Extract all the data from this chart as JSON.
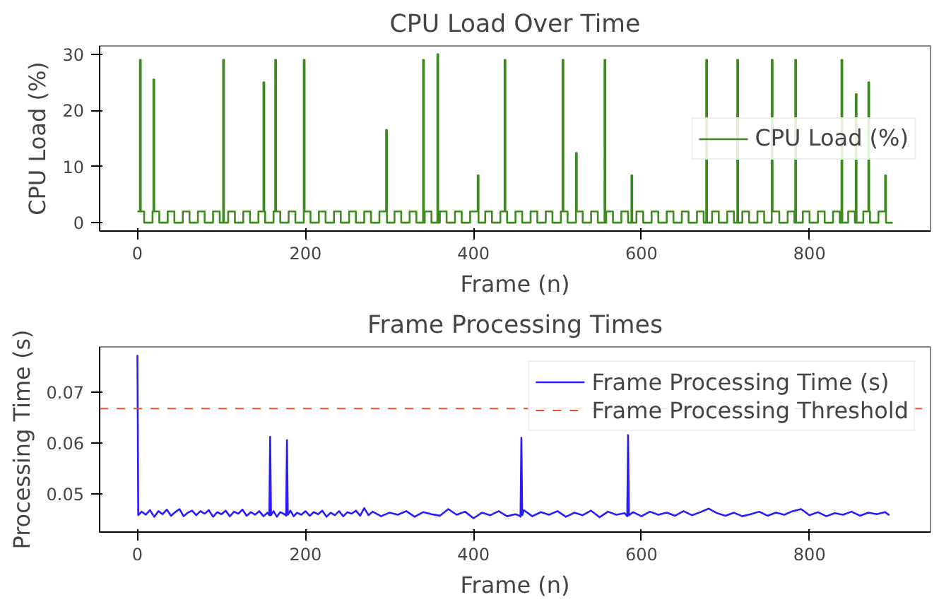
{
  "chart_data": [
    {
      "type": "step",
      "title": "CPU Load Over Time",
      "xlabel": "Frame (n)",
      "ylabel": "CPU Load (%)",
      "xlim": [
        -45,
        944
      ],
      "ylim": [
        -1.5,
        31.5
      ],
      "xticks": [
        0,
        200,
        400,
        600,
        800
      ],
      "yticks": [
        0,
        10,
        20,
        30
      ],
      "grid": false,
      "legend": "right",
      "line_style": "solid",
      "series": [
        {
          "name": "CPU Load (%)",
          "color": "#3d8b1f",
          "x": [
            0,
            3,
            4,
            8,
            18,
            19,
            20,
            26,
            36,
            44,
            54,
            62,
            72,
            80,
            90,
            98,
            102,
            103,
            108,
            116,
            126,
            134,
            144,
            150,
            151,
            152,
            162,
            164,
            165,
            170,
            180,
            188,
            198,
            199,
            206,
            216,
            224,
            234,
            242,
            252,
            260,
            270,
            278,
            288,
            296,
            297,
            306,
            314,
            324,
            332,
            340,
            341,
            342,
            350,
            357,
            358,
            360,
            368,
            378,
            386,
            396,
            405,
            406,
            414,
            422,
            432,
            437,
            438,
            440,
            450,
            458,
            468,
            476,
            486,
            494,
            504,
            506,
            507,
            512,
            522,
            523,
            530,
            540,
            548,
            556,
            557,
            558,
            566,
            576,
            584,
            588,
            589,
            594,
            602,
            612,
            620,
            630,
            638,
            648,
            656,
            666,
            674,
            677,
            678,
            684,
            692,
            702,
            710,
            714,
            715,
            720,
            728,
            738,
            746,
            755,
            756,
            764,
            774,
            782,
            783,
            784,
            792,
            800,
            810,
            818,
            828,
            836,
            838,
            839,
            846,
            854,
            855,
            856,
            864,
            870,
            871,
            872,
            882,
            890,
            891,
            899
          ],
          "values": [
            2,
            29,
            2,
            0,
            2,
            25.5,
            2,
            0,
            2,
            0,
            2,
            0,
            2,
            0,
            2,
            0,
            29,
            0,
            2,
            0,
            2,
            0,
            2,
            25,
            2,
            0,
            2,
            29,
            2,
            0,
            2,
            0,
            29,
            2,
            0,
            2,
            0,
            2,
            0,
            2,
            0,
            2,
            0,
            2,
            16.5,
            0,
            2,
            0,
            2,
            0,
            29,
            0,
            2,
            0,
            30,
            0,
            2,
            0,
            2,
            0,
            2,
            8.4,
            0,
            2,
            0,
            2,
            29,
            2,
            0,
            2,
            0,
            2,
            0,
            2,
            0,
            2,
            29,
            2,
            0,
            12.4,
            2,
            0,
            2,
            0,
            29,
            0,
            2,
            0,
            2,
            0,
            8.4,
            0,
            2,
            0,
            2,
            0,
            2,
            0,
            2,
            0,
            2,
            0,
            29,
            0,
            2,
            0,
            2,
            0,
            29,
            0,
            2,
            0,
            2,
            0,
            29,
            2,
            0,
            2,
            0,
            29,
            0,
            2,
            0,
            2,
            0,
            2,
            0,
            29,
            0,
            2,
            0,
            22.9,
            0,
            2,
            25,
            2,
            0,
            2,
            8.4,
            0,
            0
          ]
        }
      ]
    },
    {
      "type": "line",
      "title": "Frame Processing Times",
      "xlabel": "Frame (n)",
      "ylabel": "Processing Time (s)",
      "xlim": [
        -45,
        944
      ],
      "ylim": [
        0.0425,
        0.0788
      ],
      "xticks": [
        0,
        200,
        400,
        600,
        800
      ],
      "yticks": [
        0.05,
        0.06,
        0.07
      ],
      "grid": false,
      "legend": "top right",
      "line_style": "solid",
      "ref_lines": [
        {
          "axis": "y",
          "value": 0.0667,
          "label": "Frame Processing Threshold",
          "color": "#e8502a",
          "line_style": "dashed"
        }
      ],
      "series": [
        {
          "name": "Frame Processing Time (s)",
          "color": "#2a1aff",
          "x": [
            0,
            1,
            5,
            10,
            15,
            20,
            25,
            30,
            35,
            40,
            45,
            50,
            55,
            60,
            65,
            70,
            75,
            80,
            85,
            90,
            95,
            100,
            105,
            110,
            115,
            120,
            125,
            130,
            135,
            140,
            145,
            150,
            155,
            157,
            158,
            159,
            162,
            166,
            170,
            175,
            177,
            178,
            179,
            182,
            186,
            190,
            195,
            200,
            205,
            210,
            215,
            220,
            225,
            230,
            235,
            240,
            245,
            250,
            255,
            260,
            265,
            270,
            275,
            280,
            290,
            300,
            310,
            320,
            330,
            340,
            350,
            360,
            370,
            380,
            390,
            400,
            410,
            420,
            430,
            440,
            450,
            455,
            456,
            457,
            458,
            460,
            470,
            480,
            490,
            500,
            510,
            520,
            530,
            540,
            550,
            560,
            570,
            580,
            583,
            584,
            585,
            590,
            600,
            610,
            620,
            630,
            640,
            650,
            660,
            670,
            680,
            690,
            700,
            710,
            720,
            730,
            740,
            750,
            760,
            770,
            780,
            790,
            800,
            810,
            820,
            830,
            840,
            850,
            860,
            870,
            880,
            890,
            895
          ],
          "values": [
            0.0772,
            0.0458,
            0.0465,
            0.0459,
            0.0468,
            0.0455,
            0.0466,
            0.046,
            0.0469,
            0.0457,
            0.0464,
            0.047,
            0.0456,
            0.0463,
            0.0467,
            0.0458,
            0.0466,
            0.0461,
            0.0468,
            0.0455,
            0.0464,
            0.046,
            0.0467,
            0.0456,
            0.0465,
            0.0461,
            0.0469,
            0.0457,
            0.0464,
            0.0459,
            0.0466,
            0.0456,
            0.0463,
            0.0458,
            0.0612,
            0.0458,
            0.0466,
            0.0455,
            0.0464,
            0.046,
            0.0457,
            0.0605,
            0.0459,
            0.0467,
            0.0456,
            0.0463,
            0.0459,
            0.0466,
            0.0457,
            0.0464,
            0.046,
            0.0467,
            0.0455,
            0.0463,
            0.0458,
            0.0466,
            0.0456,
            0.0464,
            0.0461,
            0.0467,
            0.0457,
            0.0472,
            0.0458,
            0.0465,
            0.0456,
            0.0463,
            0.0459,
            0.0466,
            0.0455,
            0.0464,
            0.046,
            0.0457,
            0.047,
            0.0459,
            0.0465,
            0.0452,
            0.0463,
            0.0458,
            0.0466,
            0.0456,
            0.046,
            0.0457,
            0.0455,
            0.061,
            0.0458,
            0.0468,
            0.0456,
            0.0464,
            0.0459,
            0.0466,
            0.0455,
            0.0463,
            0.0458,
            0.0467,
            0.0454,
            0.0465,
            0.0459,
            0.0462,
            0.0456,
            0.0615,
            0.0458,
            0.0464,
            0.0456,
            0.0465,
            0.0459,
            0.0463,
            0.0457,
            0.0466,
            0.0458,
            0.0464,
            0.0471,
            0.0462,
            0.0457,
            0.0463,
            0.0456,
            0.046,
            0.0465,
            0.0457,
            0.0463,
            0.0459,
            0.0466,
            0.047,
            0.0458,
            0.0464,
            0.0456,
            0.0462,
            0.0459,
            0.0465,
            0.0457,
            0.0463,
            0.046,
            0.0464,
            0.0458
          ]
        }
      ]
    }
  ]
}
